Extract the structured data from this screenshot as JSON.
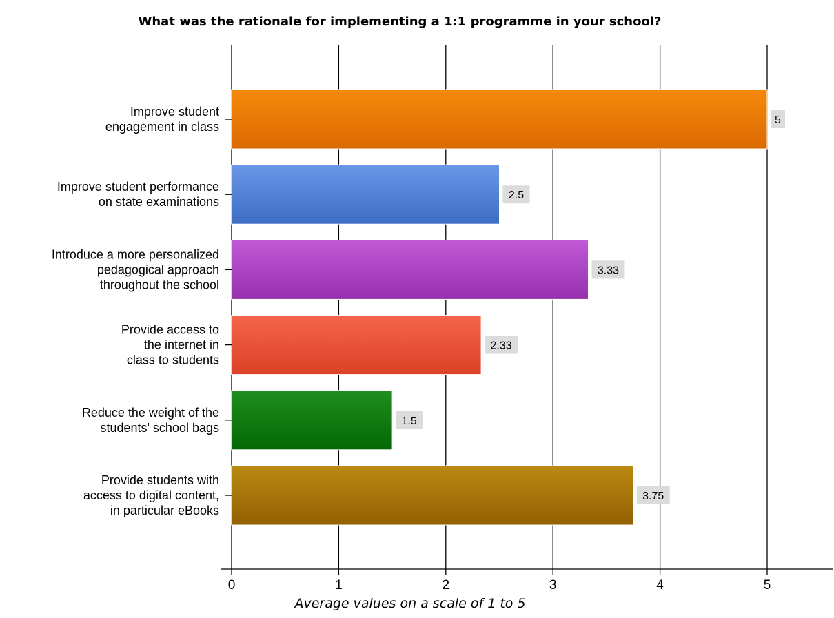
{
  "chart_data": {
    "type": "bar",
    "orientation": "horizontal",
    "title": "What was the rationale for implementing a 1:1 programme in your school?",
    "xlabel": "Average values on a scale of 1 to 5",
    "ylabel": "",
    "xlim": [
      0,
      5.6
    ],
    "x_ticks": [
      0,
      1,
      2,
      3,
      4,
      5
    ],
    "grid": "vertical",
    "legend": "none",
    "categories": [
      [
        "Improve student",
        "engagement in class"
      ],
      [
        "Improve student performance",
        "on state examinations"
      ],
      [
        "Introduce a more personalized",
        "pedagogical approach",
        "throughout the school"
      ],
      [
        "Provide access to",
        "the internet in",
        "class to students"
      ],
      [
        "Reduce the weight of the",
        "students' school bags"
      ],
      [
        "Provide students with",
        "access to digital content,",
        "in particular eBooks"
      ]
    ],
    "values": [
      5,
      2.5,
      3.33,
      2.33,
      1.5,
      3.75
    ],
    "value_labels": [
      "5",
      "2.5",
      "3.33",
      "2.33",
      "1.5",
      "3.75"
    ],
    "bar_colors": [
      [
        "#f5890a",
        "#dc6a04"
      ],
      [
        "#6a97e8",
        "#3d6ec4"
      ],
      [
        "#c159d6",
        "#9630ac"
      ],
      [
        "#f5654a",
        "#db4127"
      ],
      [
        "#1f8e1f",
        "#036803"
      ],
      [
        "#ba8a12",
        "#936002"
      ]
    ]
  }
}
